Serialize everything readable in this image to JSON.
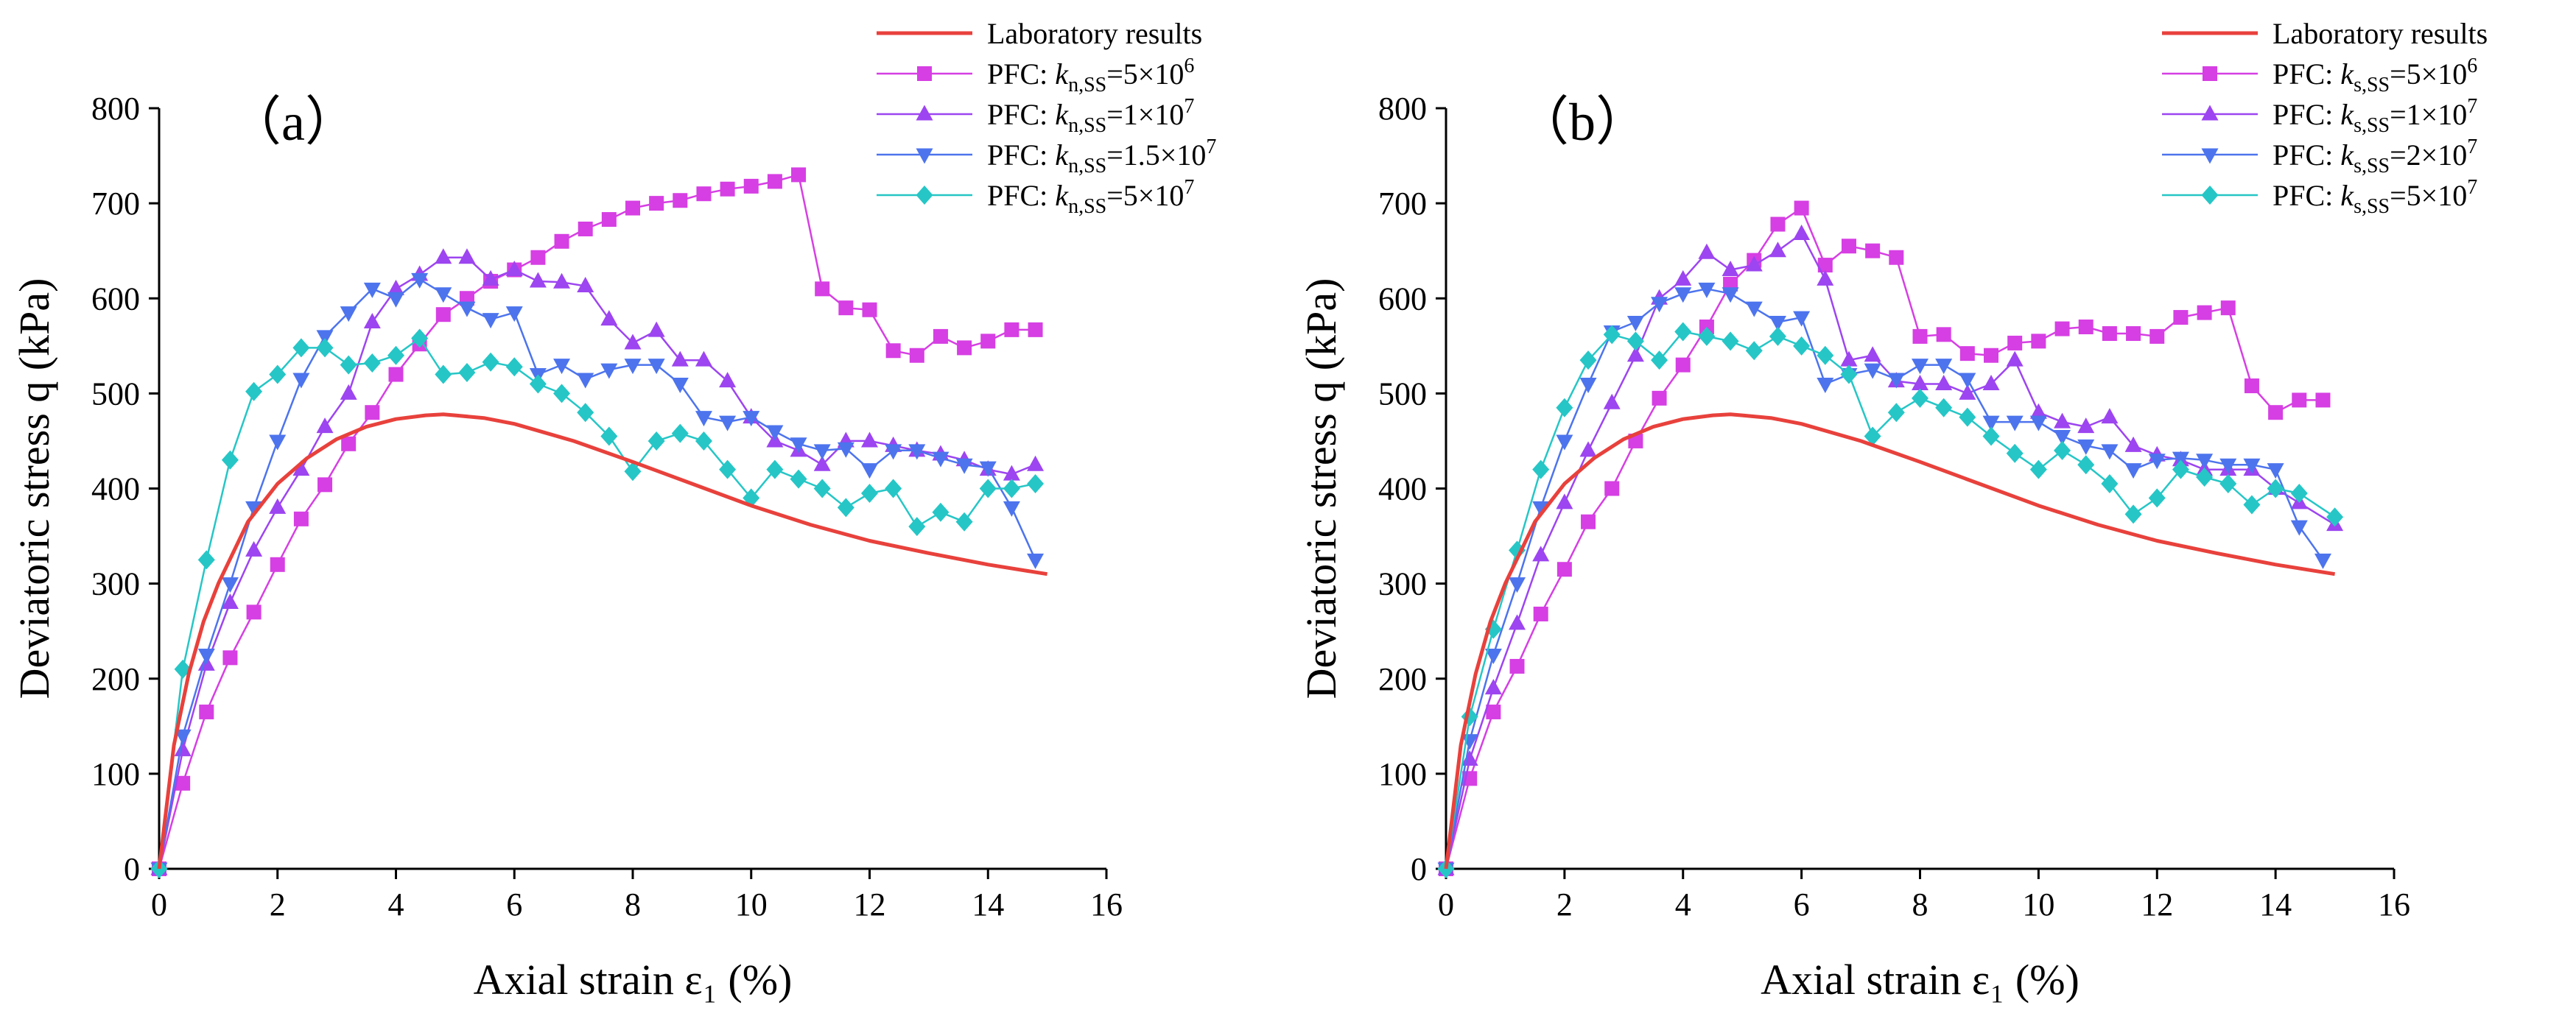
{
  "chart_data": [
    {
      "type": "line",
      "panel_label": "（a）",
      "xlabel": "Axial strain ε₁ (%)",
      "ylabel": "Deviatoric stress q (kPa)",
      "xlim": [
        0,
        16
      ],
      "ylim": [
        0,
        800
      ],
      "xticks": [
        0,
        2,
        4,
        6,
        8,
        10,
        12,
        14,
        16
      ],
      "yticks": [
        0,
        100,
        200,
        300,
        400,
        500,
        600,
        700,
        800
      ],
      "legend_position": "top-right",
      "series": [
        {
          "name": "Laboratory results",
          "legend": {
            "prefix": "Laboratory results",
            "k": "",
            "sub": "",
            "value": "",
            "exp": ""
          },
          "color": "#e8413c",
          "marker": "none",
          "x": [
            0,
            0.25,
            0.5,
            0.75,
            1.0,
            1.5,
            2.0,
            2.5,
            3.0,
            3.5,
            4.0,
            4.5,
            4.8,
            5.0,
            5.5,
            6.0,
            7.0,
            8.0,
            9.0,
            10.0,
            11.0,
            12.0,
            13.0,
            14.0,
            15.0
          ],
          "y": [
            0,
            130,
            205,
            260,
            300,
            365,
            405,
            432,
            452,
            465,
            473,
            477,
            478,
            477,
            474,
            468,
            450,
            428,
            405,
            382,
            362,
            345,
            332,
            320,
            310
          ]
        },
        {
          "name": "PFC: k_n,ss=5×10^6",
          "legend": {
            "prefix": "PFC: ",
            "k": "k",
            "sub": "n,SS",
            "value": "=5×10",
            "exp": "6"
          },
          "color": "#d63fe3",
          "marker": "square",
          "x": [
            0,
            0.4,
            0.8,
            1.2,
            1.6,
            2.0,
            2.4,
            2.8,
            3.2,
            3.6,
            4.0,
            4.4,
            4.8,
            5.2,
            5.6,
            6.0,
            6.4,
            6.8,
            7.2,
            7.6,
            8.0,
            8.4,
            8.8,
            9.2,
            9.6,
            10.0,
            10.4,
            10.8,
            11.2,
            11.6,
            12.0,
            12.4,
            12.8,
            13.2,
            13.6,
            14.0,
            14.4,
            14.8
          ],
          "y": [
            0,
            90,
            165,
            222,
            270,
            320,
            368,
            404,
            447,
            480,
            520,
            552,
            583,
            600,
            618,
            630,
            643,
            660,
            673,
            683,
            695,
            700,
            703,
            710,
            715,
            718,
            723,
            730,
            610,
            590,
            588,
            545,
            540,
            560,
            548,
            555,
            567,
            567
          ]
        },
        {
          "name": "PFC: k_n,ss=1×10^7",
          "legend": {
            "prefix": "PFC: ",
            "k": "k",
            "sub": "n,SS",
            "value": "=1×10",
            "exp": "7"
          },
          "color": "#9d45f0",
          "marker": "triangle-up",
          "x": [
            0,
            0.4,
            0.8,
            1.2,
            1.6,
            2.0,
            2.4,
            2.8,
            3.2,
            3.6,
            4.0,
            4.4,
            4.8,
            5.2,
            5.6,
            6.0,
            6.4,
            6.8,
            7.2,
            7.6,
            8.0,
            8.4,
            8.8,
            9.2,
            9.6,
            10.0,
            10.4,
            10.8,
            11.2,
            11.6,
            12.0,
            12.4,
            12.8,
            13.2,
            13.6,
            14.0,
            14.4,
            14.8
          ],
          "y": [
            0,
            125,
            215,
            280,
            335,
            380,
            420,
            465,
            500,
            575,
            610,
            625,
            643,
            643,
            620,
            630,
            618,
            617,
            613,
            578,
            553,
            566,
            535,
            535,
            513,
            475,
            450,
            440,
            425,
            450,
            450,
            445,
            440,
            436,
            430,
            420,
            415,
            425
          ]
        },
        {
          "name": "PFC: k_n,ss=1.5×10^7",
          "legend": {
            "prefix": "PFC: ",
            "k": "k",
            "sub": "n,SS",
            "value": "=1.5×10",
            "exp": "7"
          },
          "color": "#4d74ed",
          "marker": "triangle-down",
          "x": [
            0,
            0.4,
            0.8,
            1.2,
            1.6,
            2.0,
            2.4,
            2.8,
            3.2,
            3.6,
            4.0,
            4.4,
            4.8,
            5.2,
            5.6,
            6.0,
            6.4,
            6.8,
            7.2,
            7.6,
            8.0,
            8.4,
            8.8,
            9.2,
            9.6,
            10.0,
            10.4,
            10.8,
            11.2,
            11.6,
            12.0,
            12.4,
            12.8,
            13.2,
            13.6,
            14.0,
            14.4,
            14.8
          ],
          "y": [
            0,
            140,
            225,
            300,
            380,
            450,
            515,
            560,
            585,
            610,
            600,
            620,
            605,
            590,
            578,
            585,
            520,
            530,
            515,
            525,
            530,
            530,
            510,
            475,
            470,
            475,
            460,
            447,
            440,
            442,
            420,
            440,
            440,
            432,
            425,
            422,
            380,
            325
          ]
        },
        {
          "name": "PFC: k_n,ss=5×10^7",
          "legend": {
            "prefix": "PFC: ",
            "k": "k",
            "sub": "n,SS",
            "value": "=5×10",
            "exp": "7"
          },
          "color": "#26c6c6",
          "marker": "diamond",
          "x": [
            0,
            0.4,
            0.8,
            1.2,
            1.6,
            2.0,
            2.4,
            2.8,
            3.2,
            3.6,
            4.0,
            4.4,
            4.8,
            5.2,
            5.6,
            6.0,
            6.4,
            6.8,
            7.2,
            7.6,
            8.0,
            8.4,
            8.8,
            9.2,
            9.6,
            10.0,
            10.4,
            10.8,
            11.2,
            11.6,
            12.0,
            12.4,
            12.8,
            13.2,
            13.6,
            14.0,
            14.4,
            14.8
          ],
          "y": [
            0,
            210,
            325,
            430,
            502,
            520,
            548,
            548,
            530,
            532,
            540,
            558,
            520,
            522,
            533,
            528,
            510,
            500,
            480,
            455,
            418,
            450,
            458,
            450,
            420,
            390,
            420,
            410,
            400,
            380,
            395,
            400,
            360,
            375,
            365,
            400,
            400,
            405
          ]
        }
      ]
    },
    {
      "type": "line",
      "panel_label": "（b）",
      "xlabel": "Axial strain ε₁ (%)",
      "ylabel": "Deviatoric stress q (kPa)",
      "xlim": [
        0,
        16
      ],
      "ylim": [
        0,
        800
      ],
      "xticks": [
        0,
        2,
        4,
        6,
        8,
        10,
        12,
        14,
        16
      ],
      "yticks": [
        0,
        100,
        200,
        300,
        400,
        500,
        600,
        700,
        800
      ],
      "legend_position": "top-right",
      "series": [
        {
          "name": "Laboratory results",
          "legend": {
            "prefix": "Laboratory results",
            "k": "",
            "sub": "",
            "value": "",
            "exp": ""
          },
          "color": "#e8413c",
          "marker": "none",
          "x": [
            0,
            0.25,
            0.5,
            0.75,
            1.0,
            1.5,
            2.0,
            2.5,
            3.0,
            3.5,
            4.0,
            4.5,
            4.8,
            5.0,
            5.5,
            6.0,
            7.0,
            8.0,
            9.0,
            10.0,
            11.0,
            12.0,
            13.0,
            14.0,
            15.0
          ],
          "y": [
            0,
            130,
            205,
            260,
            300,
            365,
            405,
            432,
            452,
            465,
            473,
            477,
            478,
            477,
            474,
            468,
            450,
            428,
            405,
            382,
            362,
            345,
            332,
            320,
            310
          ]
        },
        {
          "name": "PFC: k_s,ss=5×10^6",
          "legend": {
            "prefix": "PFC: ",
            "k": "k",
            "sub": "s,SS",
            "value": "=5×10",
            "exp": "6"
          },
          "color": "#d63fe3",
          "marker": "square",
          "x": [
            0,
            0.4,
            0.8,
            1.2,
            1.6,
            2.0,
            2.4,
            2.8,
            3.2,
            3.6,
            4.0,
            4.4,
            4.8,
            5.2,
            5.6,
            6.0,
            6.4,
            6.8,
            7.2,
            7.6,
            8.0,
            8.4,
            8.8,
            9.2,
            9.6,
            10.0,
            10.4,
            10.8,
            11.2,
            11.6,
            12.0,
            12.4,
            12.8,
            13.2,
            13.6,
            14.0,
            14.4,
            14.8
          ],
          "y": [
            0,
            95,
            165,
            213,
            268,
            315,
            365,
            400,
            450,
            495,
            530,
            570,
            615,
            640,
            678,
            695,
            635,
            655,
            650,
            643,
            560,
            562,
            542,
            540,
            553,
            555,
            568,
            570,
            563,
            563,
            560,
            580,
            585,
            590,
            508,
            480,
            493,
            493
          ]
        },
        {
          "name": "PFC: k_s,ss=1×10^7",
          "legend": {
            "prefix": "PFC: ",
            "k": "k",
            "sub": "s,SS",
            "value": "=1×10",
            "exp": "7"
          },
          "color": "#9d45f0",
          "marker": "triangle-up",
          "x": [
            0,
            0.4,
            0.8,
            1.2,
            1.6,
            2.0,
            2.4,
            2.8,
            3.2,
            3.6,
            4.0,
            4.4,
            4.8,
            5.2,
            5.6,
            6.0,
            6.4,
            6.8,
            7.2,
            7.6,
            8.0,
            8.4,
            8.8,
            9.2,
            9.6,
            10.0,
            10.4,
            10.8,
            11.2,
            11.6,
            12.0,
            12.4,
            12.8,
            13.2,
            13.6,
            14.0,
            14.4,
            15.0
          ],
          "y": [
            0,
            115,
            190,
            258,
            330,
            385,
            440,
            490,
            540,
            600,
            620,
            648,
            630,
            635,
            650,
            668,
            620,
            535,
            540,
            513,
            510,
            510,
            500,
            510,
            535,
            480,
            470,
            465,
            475,
            445,
            435,
            430,
            420,
            420,
            420,
            400,
            385,
            362
          ]
        },
        {
          "name": "PFC: k_s,ss=2×10^7",
          "legend": {
            "prefix": "PFC: ",
            "k": "k",
            "sub": "s,SS",
            "value": "=2×10",
            "exp": "7"
          },
          "color": "#4d74ed",
          "marker": "triangle-down",
          "x": [
            0,
            0.4,
            0.8,
            1.2,
            1.6,
            2.0,
            2.4,
            2.8,
            3.2,
            3.6,
            4.0,
            4.4,
            4.8,
            5.2,
            5.6,
            6.0,
            6.4,
            6.8,
            7.2,
            7.6,
            8.0,
            8.4,
            8.8,
            9.2,
            9.6,
            10.0,
            10.4,
            10.8,
            11.2,
            11.6,
            12.0,
            12.4,
            12.8,
            13.2,
            13.6,
            14.0,
            14.4,
            14.8
          ],
          "y": [
            0,
            135,
            225,
            300,
            380,
            450,
            510,
            565,
            575,
            595,
            605,
            610,
            605,
            590,
            575,
            580,
            510,
            520,
            525,
            515,
            530,
            530,
            515,
            470,
            470,
            470,
            455,
            445,
            440,
            420,
            430,
            432,
            430,
            425,
            425,
            420,
            360,
            325
          ]
        },
        {
          "name": "PFC: k_s,ss=5×10^7",
          "legend": {
            "prefix": "PFC: ",
            "k": "k",
            "sub": "s,SS",
            "value": "=5×10",
            "exp": "7"
          },
          "color": "#26c6c6",
          "marker": "diamond",
          "x": [
            0,
            0.4,
            0.8,
            1.2,
            1.6,
            2.0,
            2.4,
            2.8,
            3.2,
            3.6,
            4.0,
            4.4,
            4.8,
            5.2,
            5.6,
            6.0,
            6.4,
            6.8,
            7.2,
            7.6,
            8.0,
            8.4,
            8.8,
            9.2,
            9.6,
            10.0,
            10.4,
            10.8,
            11.2,
            11.6,
            12.0,
            12.4,
            12.8,
            13.2,
            13.6,
            14.0,
            14.4,
            15.0
          ],
          "y": [
            0,
            160,
            252,
            335,
            420,
            485,
            535,
            562,
            555,
            535,
            565,
            560,
            555,
            545,
            560,
            550,
            540,
            520,
            455,
            480,
            495,
            485,
            475,
            455,
            437,
            420,
            440,
            425,
            405,
            373,
            390,
            420,
            412,
            405,
            383,
            400,
            395,
            370
          ]
        }
      ]
    }
  ]
}
